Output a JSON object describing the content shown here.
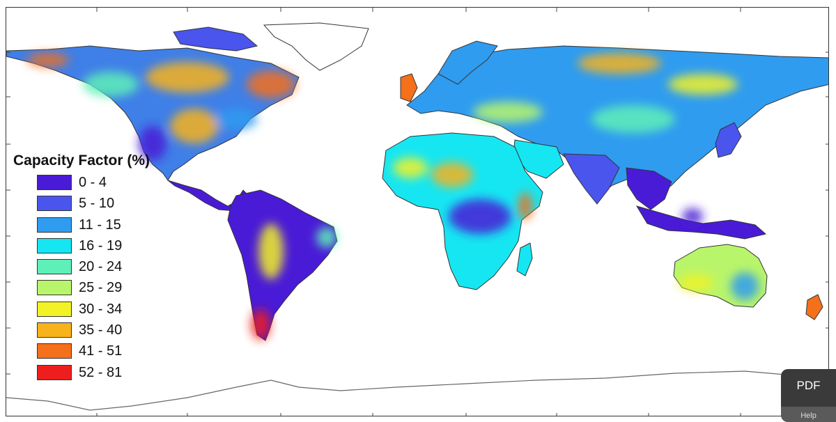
{
  "legend": {
    "title": "Capacity Factor (%)",
    "items": [
      {
        "label": "0 - 4",
        "color": "#4a1bd6"
      },
      {
        "label": "5 - 10",
        "color": "#4a55ee"
      },
      {
        "label": "11 - 15",
        "color": "#2f9cf0"
      },
      {
        "label": "16 - 19",
        "color": "#16e6f2"
      },
      {
        "label": "20 - 24",
        "color": "#5ef0b8"
      },
      {
        "label": "25 - 29",
        "color": "#b9f56a"
      },
      {
        "label": "30 - 34",
        "color": "#f2f226"
      },
      {
        "label": "35 - 40",
        "color": "#f7b21c"
      },
      {
        "label": "41 - 51",
        "color": "#f4701a"
      },
      {
        "label": "52 - 81",
        "color": "#ee1e1e"
      }
    ]
  },
  "pdf_widget": {
    "label": "PDF",
    "help_label": "Help"
  },
  "colors": {
    "ocean": "#ffffff",
    "border": "#333333"
  }
}
